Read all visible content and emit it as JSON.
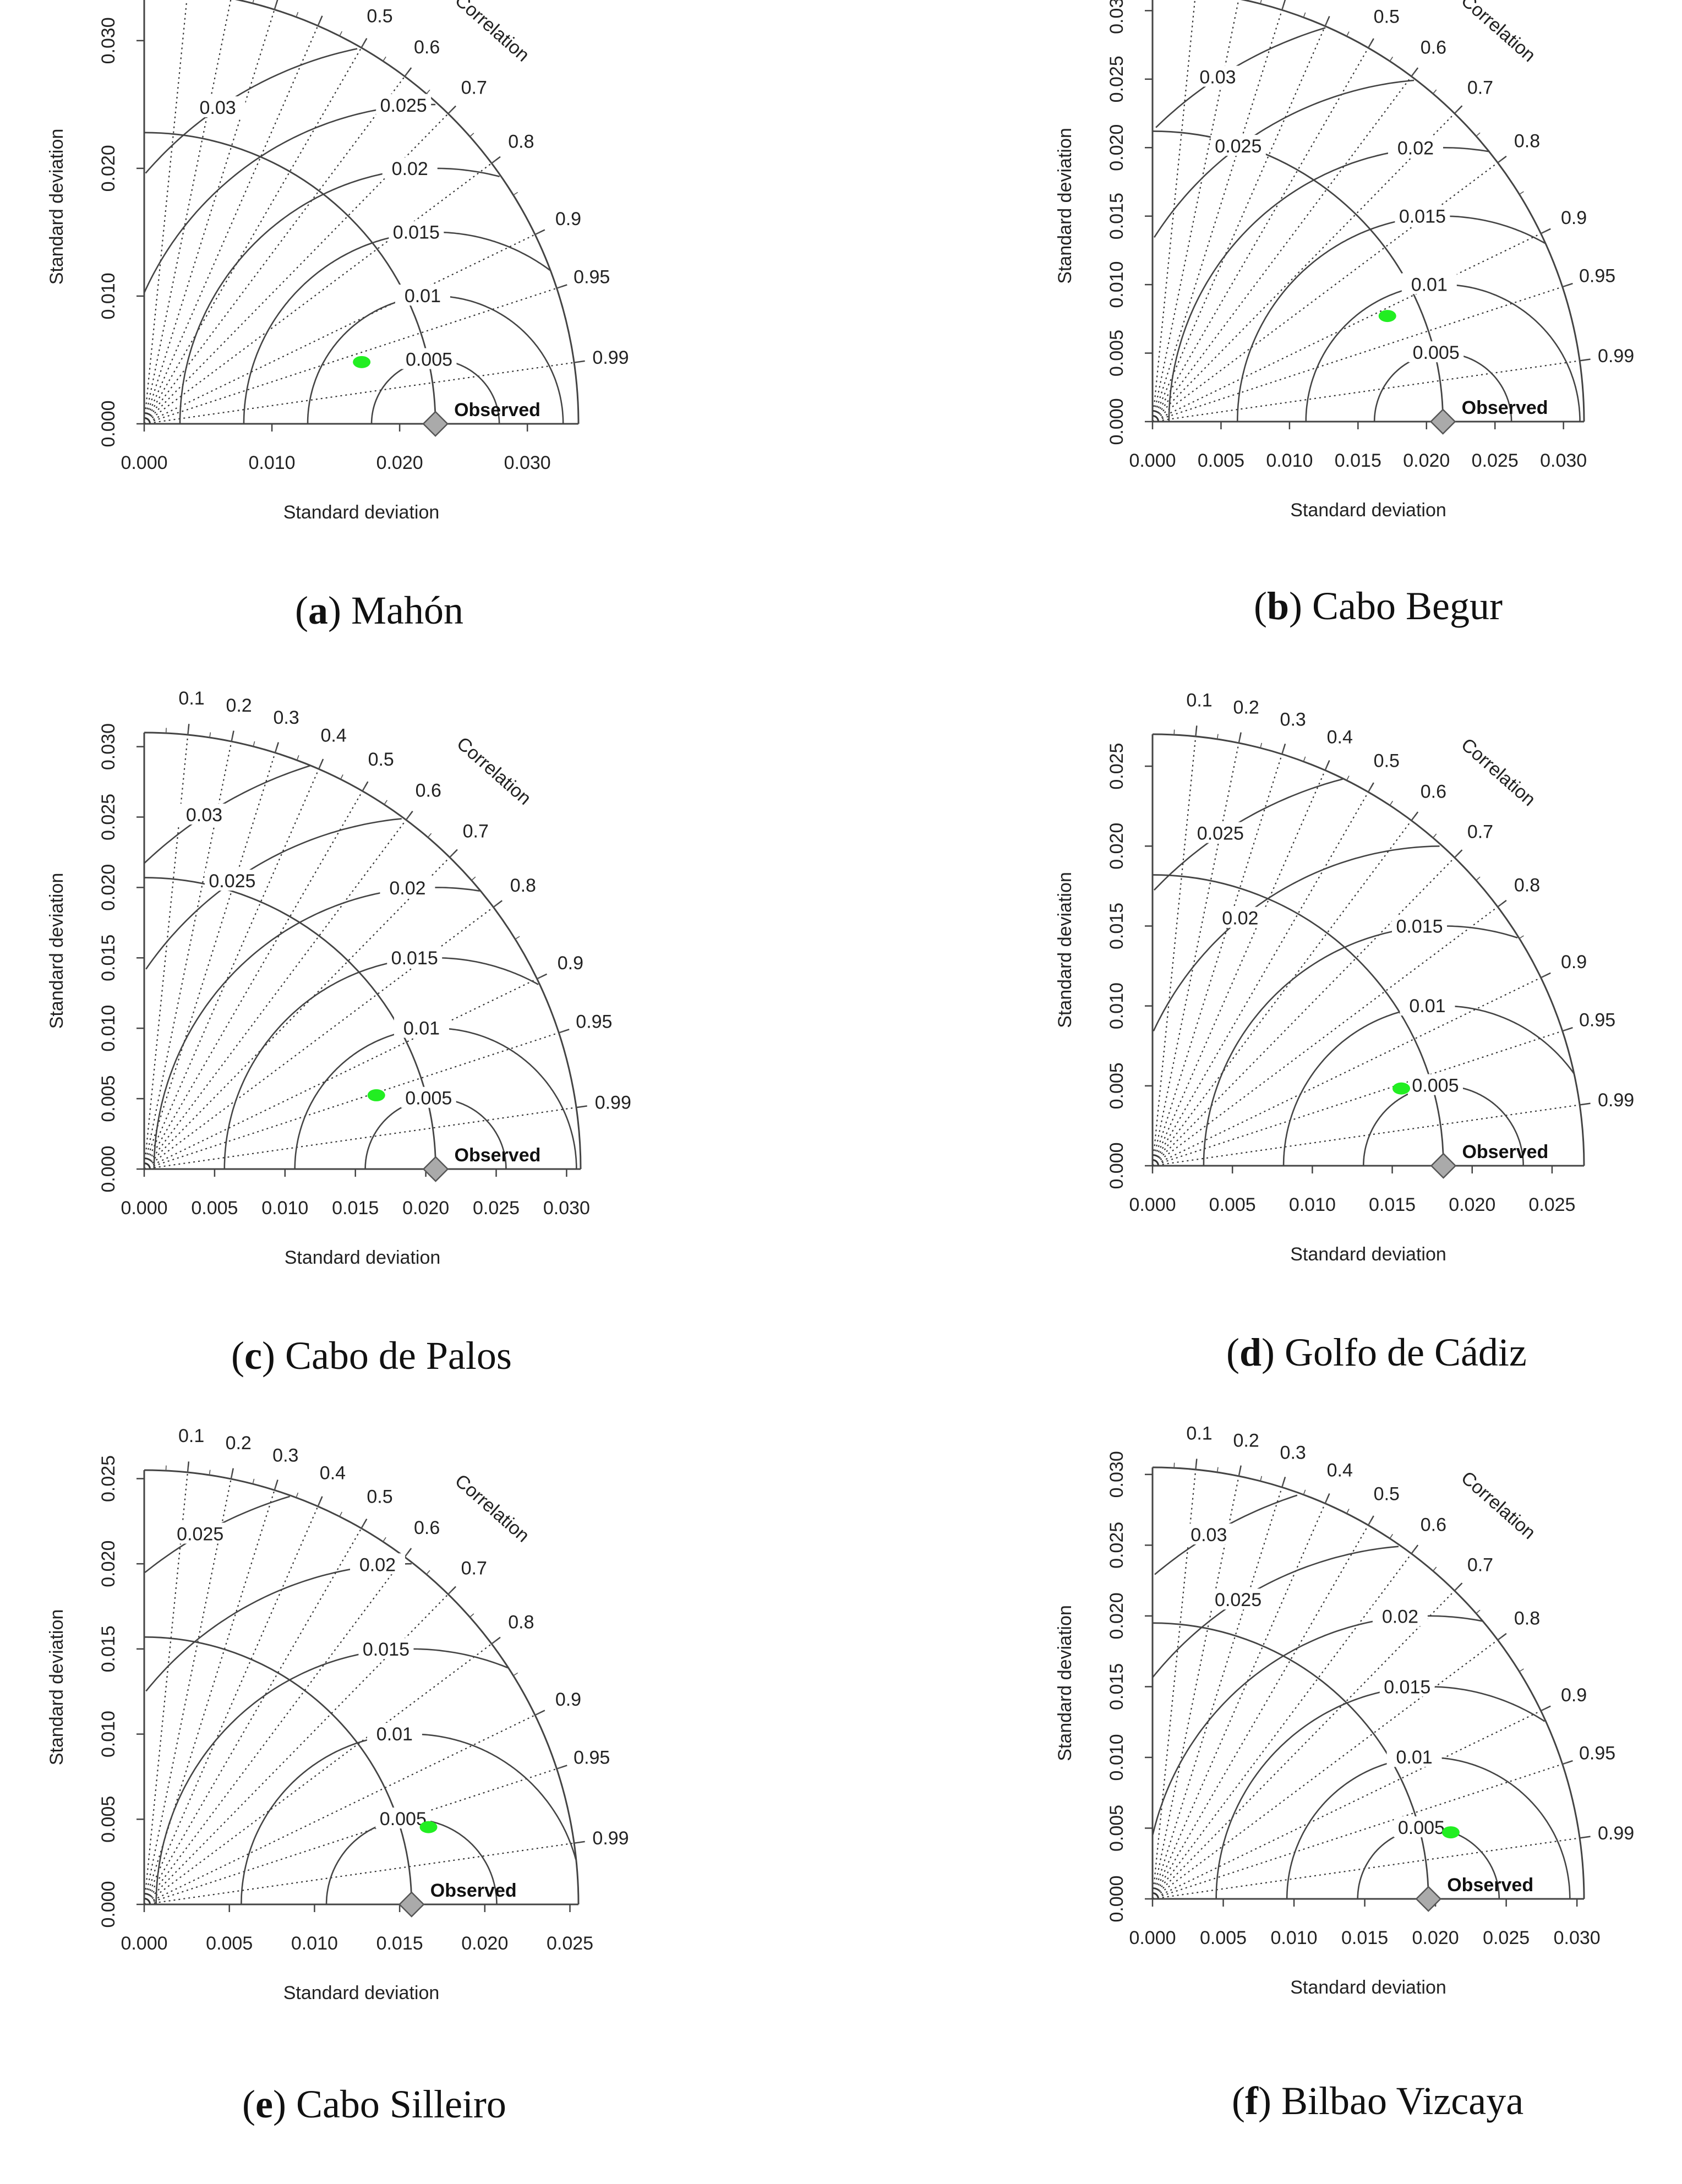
{
  "common": {
    "xlabel": "Standard deviation",
    "ylabel": "Standard deviation",
    "correlation_title": "Correlation",
    "observed_label": "Observed",
    "correlation_ticks": [
      "0.1",
      "0.2",
      "0.3",
      "0.4",
      "0.5",
      "0.6",
      "0.7",
      "0.8",
      "0.9",
      "0.95",
      "0.99"
    ],
    "model_color": "#22ee22",
    "observed_color": "#aaaaaa"
  },
  "chart_data": [
    {
      "type": "scatter",
      "chart_kind": "taylor",
      "caption_letter": "a",
      "caption_name": "Mahón",
      "xlabel": "Standard deviation",
      "ylabel": "Standard deviation",
      "max_sd": 0.034,
      "axis_ticks": [
        0.0,
        0.01,
        0.02,
        0.03
      ],
      "tick_labels": [
        "0.000",
        "0.010",
        "0.020",
        "0.030"
      ],
      "observed_sd": 0.0228,
      "model": {
        "sd": 0.0177,
        "correlation": 0.962
      },
      "rms_contours": [
        0.005,
        0.01,
        0.015,
        0.02,
        0.025,
        0.03
      ],
      "rms_labels": [
        "0.005",
        "0.01",
        "0.015",
        "0.02",
        "0.025",
        "0.03"
      ]
    },
    {
      "type": "scatter",
      "chart_kind": "taylor",
      "caption_letter": "b",
      "caption_name": "Cabo Begur",
      "xlabel": "Standard deviation",
      "ylabel": "Standard deviation",
      "max_sd": 0.0315,
      "axis_ticks": [
        0.0,
        0.005,
        0.01,
        0.015,
        0.02,
        0.025,
        0.03
      ],
      "tick_labels": [
        "0.000",
        "0.005",
        "0.010",
        "0.015",
        "0.020",
        "0.025",
        "0.030"
      ],
      "observed_sd": 0.0212,
      "model": {
        "sd": 0.0188,
        "correlation": 0.912
      },
      "rms_contours": [
        0.005,
        0.01,
        0.015,
        0.02,
        0.025,
        0.03
      ],
      "rms_labels": [
        "0.005",
        "0.01",
        "0.015",
        "0.02",
        "0.025",
        "0.03"
      ]
    },
    {
      "type": "scatter",
      "chart_kind": "taylor",
      "caption_letter": "c",
      "caption_name": "Cabo de Palos",
      "xlabel": "Standard deviation",
      "ylabel": "Standard deviation",
      "max_sd": 0.031,
      "axis_ticks": [
        0.0,
        0.005,
        0.01,
        0.015,
        0.02,
        0.025,
        0.03
      ],
      "tick_labels": [
        "0.000",
        "0.005",
        "0.010",
        "0.015",
        "0.020",
        "0.025",
        "0.030"
      ],
      "observed_sd": 0.0207,
      "model": {
        "sd": 0.0173,
        "correlation": 0.953
      },
      "rms_contours": [
        0.005,
        0.01,
        0.015,
        0.02,
        0.025,
        0.03
      ],
      "rms_labels": [
        "0.005",
        "0.01",
        "0.015",
        "0.02",
        "0.025",
        "0.03"
      ]
    },
    {
      "type": "scatter",
      "chart_kind": "taylor",
      "caption_letter": "d",
      "caption_name": "Golfo de Cádiz",
      "xlabel": "Standard deviation",
      "ylabel": "Standard deviation",
      "max_sd": 0.027,
      "axis_ticks": [
        0.0,
        0.005,
        0.01,
        0.015,
        0.02,
        0.025
      ],
      "tick_labels": [
        "0.000",
        "0.005",
        "0.010",
        "0.015",
        "0.020",
        "0.025"
      ],
      "observed_sd": 0.0182,
      "model": {
        "sd": 0.0163,
        "correlation": 0.955
      },
      "rms_contours": [
        0.005,
        0.01,
        0.015,
        0.02,
        0.025
      ],
      "rms_labels": [
        "0.005",
        "0.01",
        "0.015",
        "0.02",
        "0.025"
      ]
    },
    {
      "type": "scatter",
      "chart_kind": "taylor",
      "caption_letter": "e",
      "caption_name": "Cabo Silleiro",
      "xlabel": "Standard deviation",
      "ylabel": "Standard deviation",
      "max_sd": 0.0255,
      "axis_ticks": [
        0.0,
        0.005,
        0.01,
        0.015,
        0.02,
        0.025
      ],
      "tick_labels": [
        "0.000",
        "0.005",
        "0.010",
        "0.015",
        "0.020",
        "0.025"
      ],
      "observed_sd": 0.0157,
      "model": {
        "sd": 0.0173,
        "correlation": 0.965
      },
      "rms_contours": [
        0.005,
        0.01,
        0.015,
        0.02,
        0.025
      ],
      "rms_labels": [
        "0.005",
        "0.01",
        "0.015",
        "0.02",
        "0.025"
      ]
    },
    {
      "type": "scatter",
      "chart_kind": "taylor",
      "caption_letter": "f",
      "caption_name": "Bilbao Vizcaya",
      "xlabel": "Standard deviation",
      "ylabel": "Standard deviation",
      "max_sd": 0.0305,
      "axis_ticks": [
        0.0,
        0.005,
        0.01,
        0.015,
        0.02,
        0.025,
        0.03
      ],
      "tick_labels": [
        "0.000",
        "0.005",
        "0.010",
        "0.015",
        "0.020",
        "0.025",
        "0.030"
      ],
      "observed_sd": 0.0195,
      "model": {
        "sd": 0.0216,
        "correlation": 0.976
      },
      "rms_contours": [
        0.005,
        0.01,
        0.015,
        0.02,
        0.025,
        0.03
      ],
      "rms_labels": [
        "0.005",
        "0.01",
        "0.015",
        "0.02",
        "0.025",
        "0.03"
      ]
    }
  ]
}
